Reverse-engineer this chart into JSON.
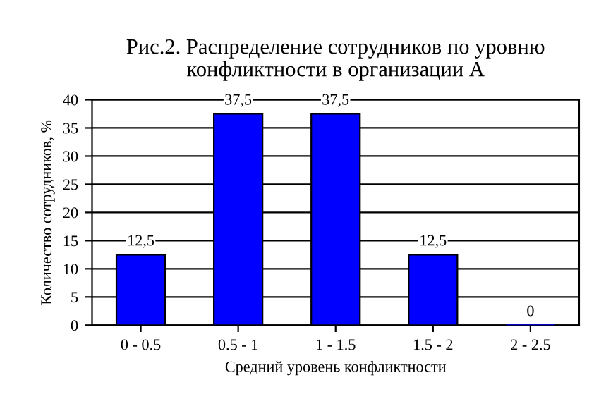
{
  "chart_data": {
    "type": "bar",
    "title": "Рис.2. Распределение сотрудников по уровню\nконфликтности в организации А",
    "xlabel": "Средний уровень конфликтности",
    "ylabel": "Количество сотрудников, %",
    "categories": [
      "0 - 0.5",
      "0.5 - 1",
      "1 - 1.5",
      "1.5 - 2",
      "2 - 2.5"
    ],
    "values": [
      12.5,
      37.5,
      37.5,
      12.5,
      0
    ],
    "value_labels": [
      "12,5",
      "37,5",
      "37,5",
      "12,5",
      "0"
    ],
    "color": "#0000ff",
    "ylim": [
      0,
      40
    ],
    "yticks": [
      0,
      5,
      10,
      15,
      20,
      25,
      30,
      35,
      40
    ],
    "grid": "y",
    "legend": false
  }
}
